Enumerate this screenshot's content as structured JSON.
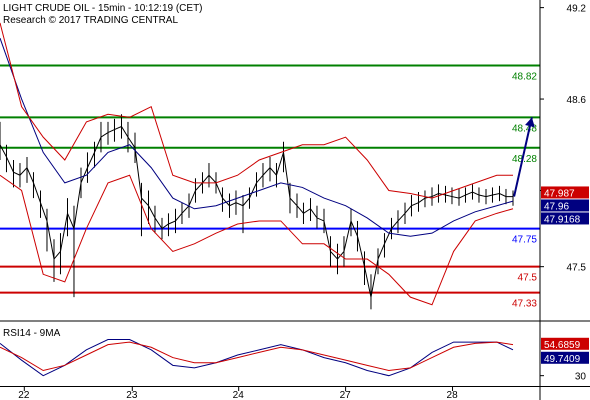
{
  "header": {
    "title": "LIGHT CRUDE OIL - 15min - 10:12:19 (CET)",
    "credit": "Research © 2017 TRADING CENTRAL"
  },
  "chart_data": [
    {
      "type": "candlestick",
      "title": "LIGHT CRUDE OIL - 15min - 10:12:19 (CET)",
      "ylim": [
        47.15,
        49.25
      ],
      "grid": false,
      "yticks": [
        {
          "value": 49.2,
          "label": "49.2"
        },
        {
          "value": 48.6,
          "label": "48.6"
        },
        {
          "value": 48.0,
          "label": "48"
        },
        {
          "value": 47.5,
          "label": "47.5"
        }
      ],
      "xticks": [
        {
          "value": 0.045,
          "label": "22"
        },
        {
          "value": 0.245,
          "label": "23"
        },
        {
          "value": 0.442,
          "label": "24"
        },
        {
          "value": 0.64,
          "label": "27"
        },
        {
          "value": 0.838,
          "label": "28"
        }
      ],
      "levels": [
        {
          "value": 48.82,
          "label": "48.82",
          "color": "#008000"
        },
        {
          "value": 48.48,
          "label": "48.48",
          "color": "#008000"
        },
        {
          "value": 48.28,
          "label": "48.28",
          "color": "#008000"
        },
        {
          "value": 47.75,
          "label": "47.75",
          "color": "#0000ff"
        },
        {
          "value": 47.5,
          "label": "47.5",
          "color": "#cc0000"
        },
        {
          "value": 47.33,
          "label": "47.33",
          "color": "#cc0000"
        }
      ],
      "badges": [
        {
          "value": 47.987,
          "label": "47.987",
          "bg": "#cc0000",
          "fg": "#ffffff"
        },
        {
          "value": 47.96,
          "label": "47.96",
          "bg": "#000080",
          "fg": "#ffffff"
        },
        {
          "value": 47.9168,
          "label": "47.9168",
          "bg": "#000080",
          "fg": "#ffffff"
        }
      ],
      "series": [
        {
          "name": "price",
          "color": "#000000",
          "x": [
            0.0,
            0.012,
            0.025,
            0.037,
            0.05,
            0.062,
            0.075,
            0.087,
            0.1,
            0.112,
            0.125,
            0.137,
            0.15,
            0.162,
            0.175,
            0.187,
            0.2,
            0.212,
            0.225,
            0.237,
            0.25,
            0.262,
            0.275,
            0.287,
            0.3,
            0.312,
            0.325,
            0.337,
            0.35,
            0.362,
            0.375,
            0.387,
            0.4,
            0.412,
            0.425,
            0.437,
            0.45,
            0.462,
            0.475,
            0.487,
            0.5,
            0.512,
            0.525,
            0.537,
            0.55,
            0.562,
            0.575,
            0.587,
            0.6,
            0.612,
            0.625,
            0.637,
            0.65,
            0.662,
            0.675,
            0.687,
            0.7,
            0.712,
            0.725,
            0.737,
            0.75,
            0.762,
            0.775,
            0.787,
            0.8,
            0.812,
            0.825,
            0.837,
            0.85,
            0.862,
            0.875,
            0.887,
            0.9,
            0.912,
            0.925,
            0.937,
            0.95
          ],
          "y": [
            48.3,
            48.22,
            48.12,
            48.1,
            48.15,
            48.05,
            47.92,
            47.8,
            47.55,
            47.6,
            47.85,
            47.75,
            48.05,
            48.15,
            48.25,
            48.35,
            48.38,
            48.4,
            48.42,
            48.35,
            48.28,
            47.95,
            47.9,
            47.82,
            47.75,
            47.78,
            47.8,
            47.85,
            47.9,
            48.0,
            48.05,
            48.1,
            48.05,
            47.95,
            47.9,
            47.92,
            47.9,
            47.95,
            48.05,
            48.1,
            48.15,
            48.1,
            48.25,
            47.95,
            47.9,
            47.85,
            47.88,
            47.82,
            47.8,
            47.6,
            47.55,
            47.6,
            47.8,
            47.7,
            47.5,
            47.3,
            47.55,
            47.65,
            47.75,
            47.8,
            47.85,
            47.9,
            47.92,
            47.95,
            47.96,
            47.98,
            47.97,
            47.96,
            47.95,
            47.97,
            47.99,
            47.97,
            47.96,
            47.97,
            47.98,
            47.96,
            47.96
          ],
          "yhigh": [
            48.45,
            48.3,
            48.2,
            48.18,
            48.22,
            48.12,
            48.0,
            47.88,
            47.68,
            47.72,
            47.95,
            47.9,
            48.15,
            48.25,
            48.32,
            48.45,
            48.45,
            48.47,
            48.5,
            48.45,
            48.38,
            48.05,
            48.0,
            47.9,
            47.82,
            47.85,
            47.88,
            47.92,
            47.98,
            48.08,
            48.12,
            48.18,
            48.12,
            48.02,
            47.98,
            48.0,
            47.97,
            48.02,
            48.12,
            48.18,
            48.22,
            48.18,
            48.32,
            48.05,
            47.98,
            47.92,
            47.95,
            47.9,
            47.88,
            47.7,
            47.65,
            47.7,
            47.88,
            47.8,
            47.6,
            47.45,
            47.62,
            47.72,
            47.82,
            47.87,
            47.92,
            47.97,
            47.99,
            48.0,
            48.02,
            48.04,
            48.03,
            48.02,
            48.01,
            48.02,
            48.04,
            48.02,
            48.01,
            48.02,
            48.03,
            48.01,
            48.0
          ],
          "ylow": [
            48.2,
            48.12,
            48.02,
            48.02,
            48.05,
            47.95,
            47.82,
            47.6,
            47.4,
            47.45,
            47.7,
            47.3,
            47.95,
            48.05,
            48.15,
            48.25,
            48.3,
            48.32,
            48.34,
            48.25,
            48.18,
            47.7,
            47.78,
            47.72,
            47.68,
            47.7,
            47.72,
            47.78,
            47.82,
            47.92,
            47.98,
            48.02,
            47.98,
            47.86,
            47.82,
            47.84,
            47.72,
            47.88,
            47.96,
            48.02,
            48.06,
            48.02,
            48.12,
            47.85,
            47.82,
            47.78,
            47.8,
            47.75,
            47.72,
            47.5,
            47.45,
            47.5,
            47.7,
            47.6,
            47.38,
            47.22,
            47.45,
            47.56,
            47.68,
            47.72,
            47.78,
            47.83,
            47.86,
            47.89,
            47.9,
            47.92,
            47.92,
            47.91,
            47.9,
            47.92,
            47.94,
            47.92,
            47.91,
            47.92,
            47.93,
            47.91,
            47.9
          ]
        },
        {
          "name": "moving-average",
          "color": "#000080",
          "x": [
            0.0,
            0.04,
            0.08,
            0.12,
            0.16,
            0.2,
            0.24,
            0.28,
            0.32,
            0.36,
            0.4,
            0.44,
            0.48,
            0.52,
            0.56,
            0.6,
            0.64,
            0.68,
            0.72,
            0.76,
            0.8,
            0.84,
            0.88,
            0.92,
            0.95
          ],
          "y": [
            49.0,
            48.6,
            48.25,
            48.05,
            48.1,
            48.25,
            48.3,
            48.15,
            47.95,
            47.88,
            47.9,
            47.95,
            48.0,
            48.05,
            48.02,
            47.95,
            47.9,
            47.82,
            47.72,
            47.7,
            47.72,
            47.8,
            47.86,
            47.9,
            47.93
          ]
        },
        {
          "name": "upper-band",
          "color": "#cc0000",
          "x": [
            0.0,
            0.04,
            0.08,
            0.12,
            0.16,
            0.2,
            0.24,
            0.28,
            0.32,
            0.36,
            0.4,
            0.44,
            0.48,
            0.52,
            0.56,
            0.6,
            0.64,
            0.68,
            0.72,
            0.76,
            0.8,
            0.84,
            0.88,
            0.92,
            0.95
          ],
          "y": [
            49.1,
            48.55,
            48.35,
            48.2,
            48.45,
            48.5,
            48.48,
            48.55,
            48.1,
            48.05,
            48.05,
            48.1,
            48.2,
            48.25,
            48.3,
            48.3,
            48.35,
            48.2,
            48.0,
            47.98,
            47.95,
            48.0,
            48.05,
            48.1,
            48.1
          ]
        },
        {
          "name": "lower-band",
          "color": "#cc0000",
          "x": [
            0.0,
            0.04,
            0.08,
            0.12,
            0.16,
            0.2,
            0.24,
            0.28,
            0.32,
            0.36,
            0.4,
            0.44,
            0.48,
            0.52,
            0.56,
            0.6,
            0.64,
            0.68,
            0.72,
            0.76,
            0.8,
            0.84,
            0.88,
            0.92,
            0.95
          ],
          "y": [
            48.1,
            48.0,
            47.45,
            47.4,
            47.75,
            48.05,
            48.1,
            47.75,
            47.6,
            47.65,
            47.72,
            47.78,
            47.8,
            47.8,
            47.65,
            47.65,
            47.55,
            47.55,
            47.45,
            47.3,
            47.25,
            47.6,
            47.8,
            47.85,
            47.88
          ]
        }
      ],
      "projection": {
        "x_from": 0.952,
        "y_from": 47.96,
        "x_to": 0.985,
        "y_to": 48.48,
        "color": "#000080"
      }
    },
    {
      "type": "line",
      "title": "RSI14 - 9MA",
      "ylim": [
        22,
        70
      ],
      "grid": false,
      "yticks": [
        {
          "value": 30,
          "label": "30"
        }
      ],
      "badges": [
        {
          "value": 54.6859,
          "label": "54.6859",
          "bg": "#cc0000",
          "fg": "#ffffff"
        },
        {
          "value": 49.7409,
          "label": "49.7409",
          "bg": "#000080",
          "fg": "#ffffff"
        }
      ],
      "series": [
        {
          "name": "rsi",
          "color": "#000080",
          "x": [
            0.0,
            0.04,
            0.08,
            0.12,
            0.16,
            0.2,
            0.24,
            0.28,
            0.32,
            0.36,
            0.4,
            0.44,
            0.48,
            0.52,
            0.56,
            0.6,
            0.64,
            0.68,
            0.72,
            0.76,
            0.8,
            0.84,
            0.88,
            0.92,
            0.95
          ],
          "y": [
            55,
            42,
            30,
            38,
            50,
            58,
            58,
            50,
            38,
            36,
            40,
            46,
            50,
            54,
            50,
            44,
            40,
            34,
            30,
            36,
            48,
            56,
            56,
            56,
            50
          ]
        },
        {
          "name": "rsi-ma",
          "color": "#cc0000",
          "x": [
            0.0,
            0.04,
            0.08,
            0.12,
            0.16,
            0.2,
            0.24,
            0.28,
            0.32,
            0.36,
            0.4,
            0.44,
            0.48,
            0.52,
            0.56,
            0.6,
            0.64,
            0.68,
            0.72,
            0.76,
            0.8,
            0.84,
            0.88,
            0.92,
            0.95
          ],
          "y": [
            52,
            44,
            34,
            38,
            46,
            54,
            56,
            52,
            44,
            40,
            40,
            44,
            48,
            52,
            50,
            46,
            42,
            38,
            34,
            36,
            44,
            52,
            55,
            56,
            54
          ]
        }
      ]
    }
  ]
}
